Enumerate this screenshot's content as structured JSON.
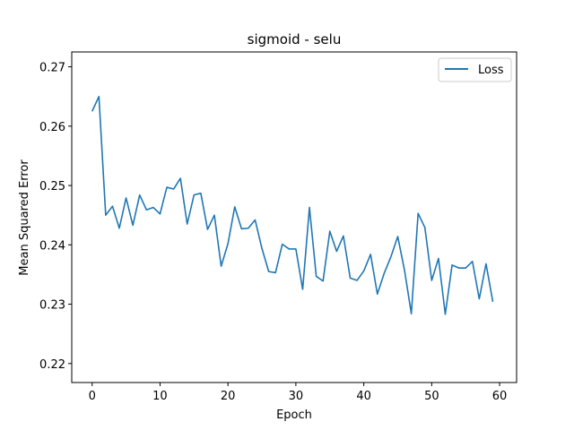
{
  "chart_data": {
    "type": "line",
    "title": "sigmoid - selu",
    "xlabel": "Epoch",
    "ylabel": "Mean Squared Error",
    "xlim": [
      -3,
      62.5
    ],
    "ylim": [
      0.2168,
      0.2725
    ],
    "xticks": [
      0,
      10,
      20,
      30,
      40,
      50,
      60
    ],
    "yticks": [
      0.22,
      0.23,
      0.24,
      0.25,
      0.26,
      0.27
    ],
    "legend": {
      "position": "top-right"
    },
    "grid": false,
    "series": [
      {
        "name": "Loss",
        "color": "#1f77b4",
        "x": [
          0,
          1,
          2,
          3,
          4,
          5,
          6,
          7,
          8,
          9,
          10,
          11,
          12,
          13,
          14,
          15,
          16,
          17,
          18,
          19,
          20,
          21,
          22,
          23,
          24,
          25,
          26,
          27,
          28,
          29,
          30,
          31,
          32,
          33,
          34,
          35,
          36,
          37,
          38,
          39,
          40,
          41,
          42,
          43,
          44,
          45,
          46,
          47,
          48,
          49,
          50,
          51,
          52,
          53,
          54,
          55,
          56,
          57,
          58,
          59
        ],
        "y": [
          0.2625,
          0.265,
          0.245,
          0.2465,
          0.2428,
          0.2479,
          0.2433,
          0.2484,
          0.2459,
          0.2463,
          0.2452,
          0.2497,
          0.2494,
          0.2512,
          0.2435,
          0.2484,
          0.2487,
          0.2426,
          0.245,
          0.2364,
          0.2402,
          0.2464,
          0.2427,
          0.2428,
          0.2442,
          0.2394,
          0.2355,
          0.2353,
          0.2401,
          0.2393,
          0.2393,
          0.2325,
          0.2463,
          0.2347,
          0.2339,
          0.2423,
          0.2389,
          0.2415,
          0.2344,
          0.234,
          0.2356,
          0.2384,
          0.2317,
          0.2352,
          0.238,
          0.2414,
          0.2357,
          0.2284,
          0.2453,
          0.2429,
          0.234,
          0.2377,
          0.2283,
          0.2366,
          0.2361,
          0.2361,
          0.2372,
          0.2309,
          0.2368,
          0.2304
        ]
      }
    ]
  }
}
